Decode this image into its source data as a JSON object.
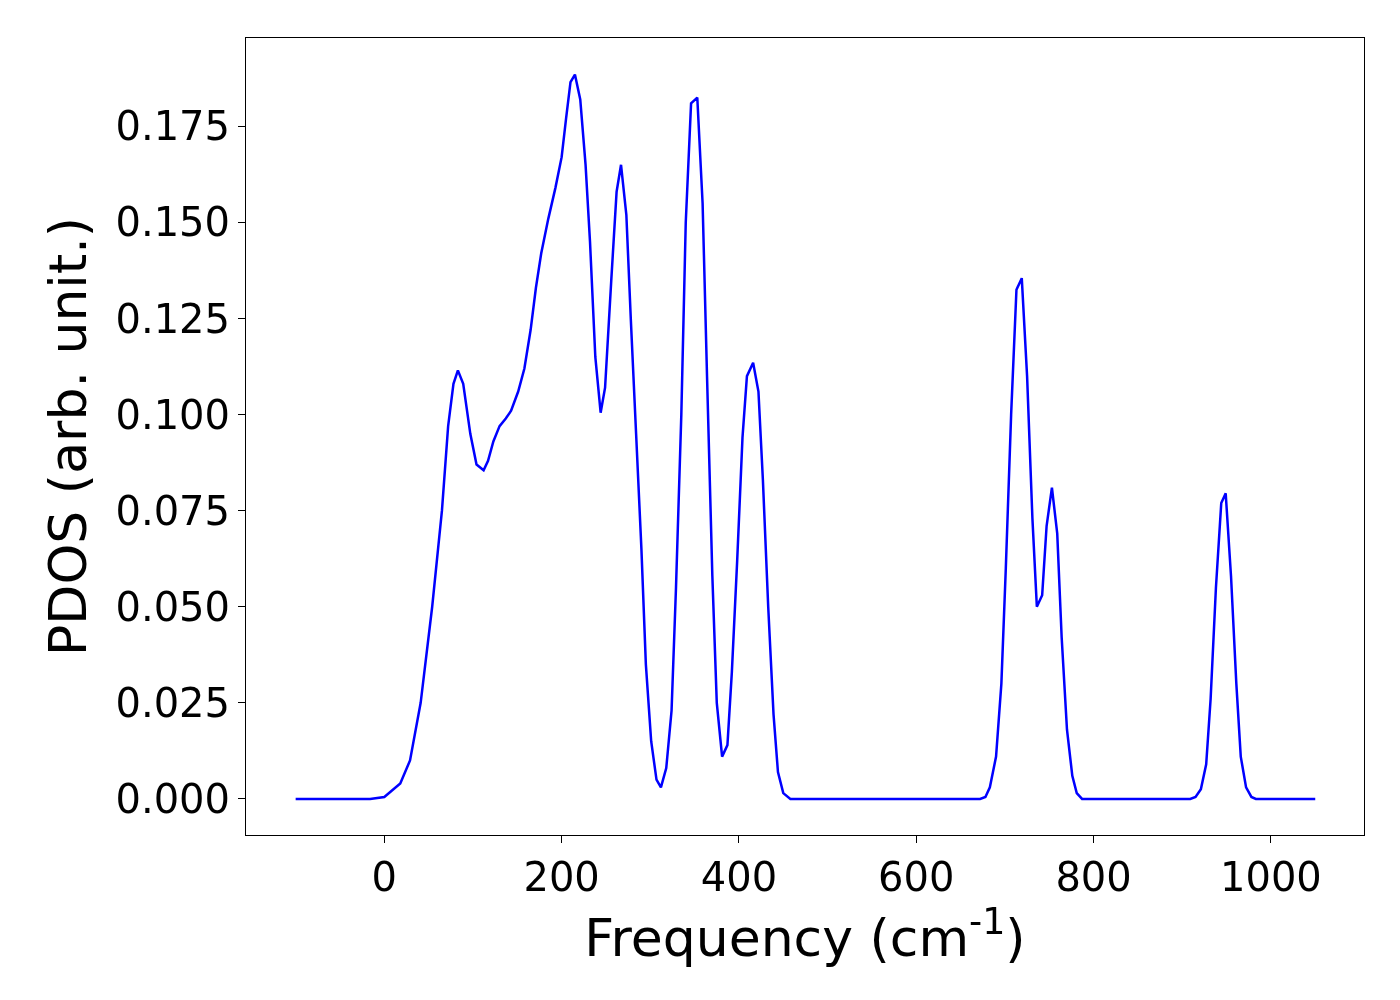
{
  "chart_data": {
    "type": "line",
    "xlabel": "Frequency (cm$^{-1}$)",
    "ylabel": "PDOS (arb. unit.)",
    "xlim": [
      -156,
      1105
    ],
    "ylim": [
      -0.0094,
      0.198
    ],
    "xticks": [
      0,
      200,
      400,
      600,
      800,
      1000
    ],
    "yticks": [
      {
        "value": 0,
        "label": "0.000"
      },
      {
        "value": 0.025,
        "label": "0.025"
      },
      {
        "value": 0.05,
        "label": "0.050"
      },
      {
        "value": 0.075,
        "label": "0.075"
      },
      {
        "value": 0.1,
        "label": "0.100"
      },
      {
        "value": 0.125,
        "label": "0.125"
      },
      {
        "value": 0.15,
        "label": "0.150"
      },
      {
        "value": 0.175,
        "label": "0.175"
      }
    ],
    "line_style": "solid",
    "series": [
      {
        "color": "#0000ff",
        "x": [
          -100,
          -16,
          0,
          18,
          29,
          41,
          54,
          65,
          72,
          78,
          83,
          89,
          97,
          104,
          112,
          117,
          123,
          130,
          137,
          143,
          151,
          158,
          165,
          171,
          177,
          185,
          193,
          200,
          205,
          210,
          215,
          221,
          227,
          232,
          238,
          244,
          249,
          256,
          262,
          267,
          273,
          278,
          284,
          290,
          295,
          301,
          307,
          312,
          318,
          324,
          329,
          335,
          340,
          346,
          353,
          359,
          364,
          370,
          375,
          381,
          387,
          392,
          398,
          404,
          409,
          416,
          422,
          427,
          433,
          439,
          444,
          450,
          458,
          672,
          678,
          683,
          690,
          696,
          701,
          707,
          713,
          719,
          725,
          731,
          736,
          742,
          747,
          753,
          759,
          764,
          770,
          776,
          781,
          787,
          909,
          915,
          921,
          927,
          932,
          938,
          944,
          949,
          955,
          961,
          966,
          972,
          978,
          983,
          1050
        ],
        "values": [
          0,
          0,
          0.0005,
          0.004,
          0.01,
          0.025,
          0.05,
          0.075,
          0.097,
          0.108,
          0.1115,
          0.108,
          0.095,
          0.087,
          0.0855,
          0.088,
          0.093,
          0.097,
          0.099,
          0.101,
          0.106,
          0.112,
          0.122,
          0.133,
          0.142,
          0.151,
          0.159,
          0.167,
          0.177,
          0.1865,
          0.1885,
          0.182,
          0.165,
          0.145,
          0.115,
          0.1005,
          0.107,
          0.135,
          0.158,
          0.165,
          0.152,
          0.125,
          0.095,
          0.065,
          0.035,
          0.015,
          0.005,
          0.003,
          0.008,
          0.023,
          0.055,
          0.1,
          0.15,
          0.181,
          0.1825,
          0.155,
          0.11,
          0.058,
          0.025,
          0.011,
          0.014,
          0.033,
          0.062,
          0.094,
          0.11,
          0.1135,
          0.106,
          0.083,
          0.05,
          0.022,
          0.007,
          0.0015,
          0,
          0,
          0.0005,
          0.003,
          0.011,
          0.03,
          0.06,
          0.1,
          0.1325,
          0.1355,
          0.11,
          0.073,
          0.05,
          0.053,
          0.071,
          0.081,
          0.069,
          0.042,
          0.018,
          0.006,
          0.0015,
          0,
          0,
          0.0005,
          0.0025,
          0.009,
          0.026,
          0.055,
          0.077,
          0.0795,
          0.058,
          0.03,
          0.011,
          0.003,
          0.0005,
          0,
          0
        ]
      }
    ]
  }
}
